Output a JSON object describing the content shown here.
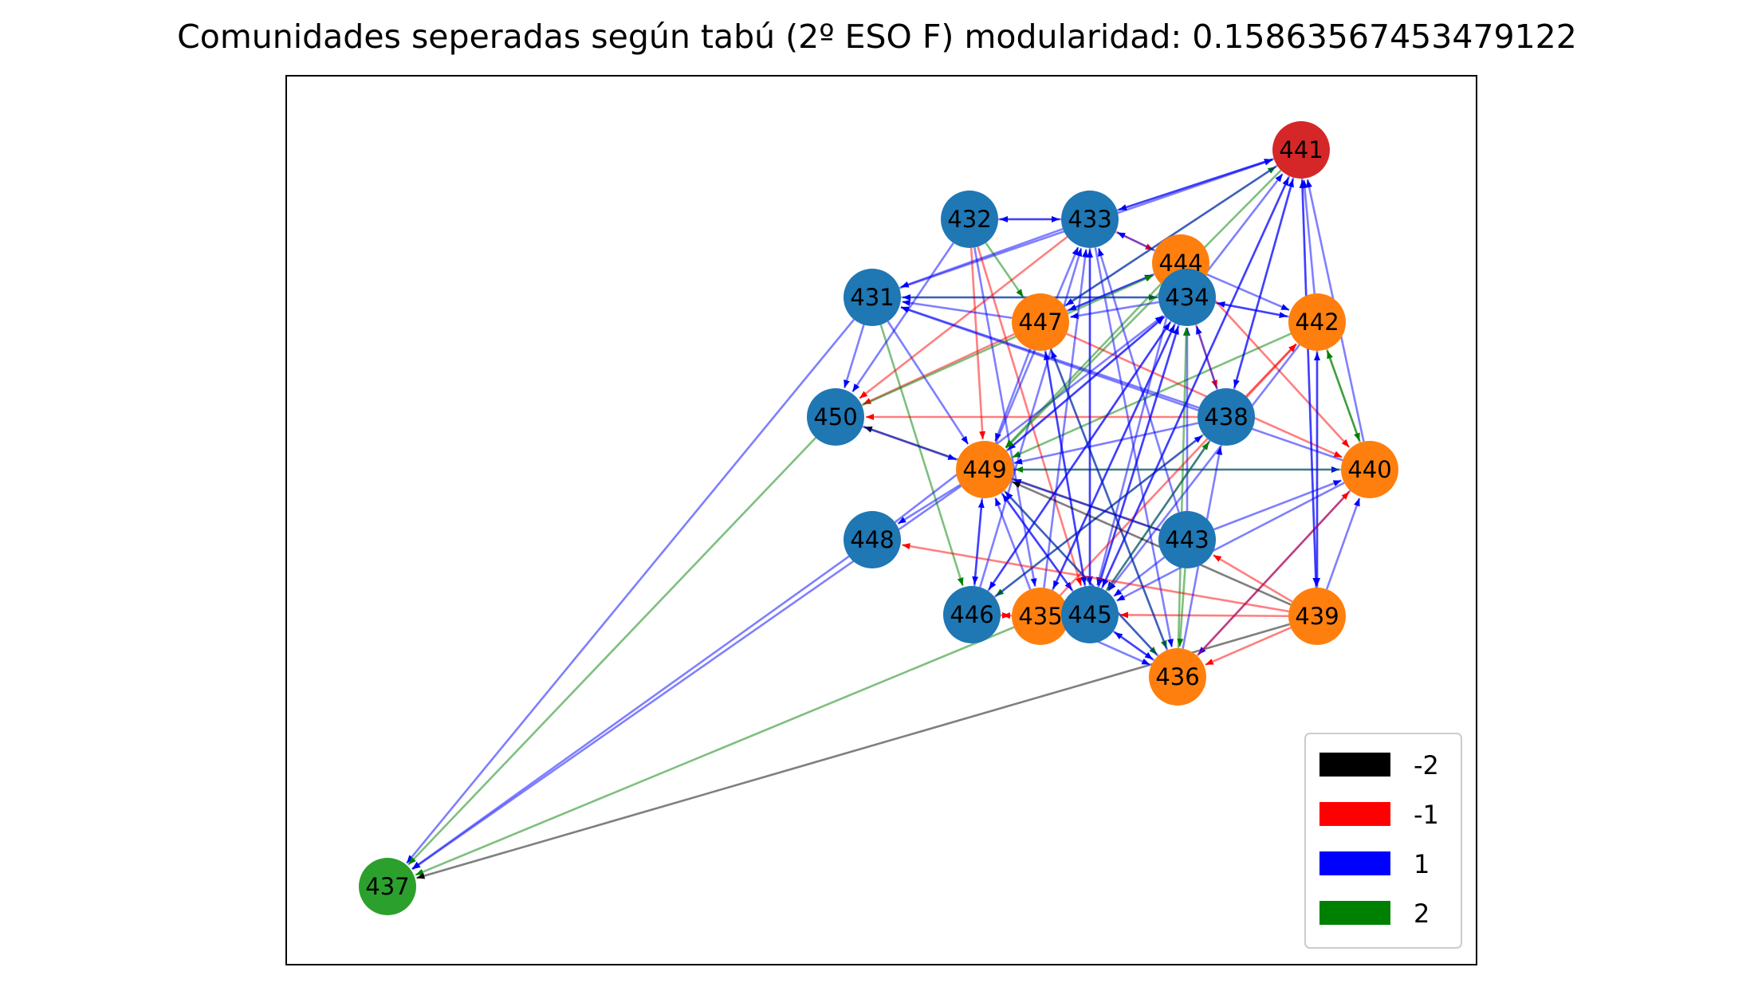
{
  "title": "Comunidades seperadas según tabú (2º ESO F) modularidad: 0.15863567453479122",
  "community_colors": {
    "blue": "#1f77b4",
    "orange": "#ff7f0e",
    "green": "#2ca02c",
    "red": "#d62728"
  },
  "edge_colors": {
    "-2": "#000000",
    "-1": "#ff0000",
    "1": "#0000ff",
    "2": "#008000"
  },
  "legend": [
    {
      "label": "-2",
      "color": "#000000"
    },
    {
      "label": "-1",
      "color": "#ff0000"
    },
    {
      "label": "1",
      "color": "#0000ff"
    },
    {
      "label": "2",
      "color": "#008000"
    }
  ],
  "nodes": [
    {
      "id": "441",
      "community": "red"
    },
    {
      "id": "432",
      "community": "blue"
    },
    {
      "id": "433",
      "community": "blue"
    },
    {
      "id": "444",
      "community": "orange"
    },
    {
      "id": "431",
      "community": "blue"
    },
    {
      "id": "434",
      "community": "blue"
    },
    {
      "id": "447",
      "community": "orange"
    },
    {
      "id": "442",
      "community": "orange"
    },
    {
      "id": "450",
      "community": "blue"
    },
    {
      "id": "438",
      "community": "blue"
    },
    {
      "id": "449",
      "community": "orange"
    },
    {
      "id": "440",
      "community": "orange"
    },
    {
      "id": "448",
      "community": "blue"
    },
    {
      "id": "443",
      "community": "blue"
    },
    {
      "id": "446",
      "community": "blue"
    },
    {
      "id": "435",
      "community": "orange"
    },
    {
      "id": "445",
      "community": "blue"
    },
    {
      "id": "439",
      "community": "orange"
    },
    {
      "id": "436",
      "community": "orange"
    },
    {
      "id": "437",
      "community": "green"
    }
  ],
  "edges": [
    {
      "s": "431",
      "t": "437",
      "w": "1"
    },
    {
      "s": "450",
      "t": "437",
      "w": "2"
    },
    {
      "s": "449",
      "t": "437",
      "w": "1"
    },
    {
      "s": "448",
      "t": "437",
      "w": "1"
    },
    {
      "s": "435",
      "t": "437",
      "w": "2"
    },
    {
      "s": "439",
      "t": "437",
      "w": "-2"
    },
    {
      "s": "431",
      "t": "450",
      "w": "1"
    },
    {
      "s": "431",
      "t": "449",
      "w": "1"
    },
    {
      "s": "431",
      "t": "446",
      "w": "2"
    },
    {
      "s": "431",
      "t": "434",
      "w": "2"
    },
    {
      "s": "431",
      "t": "441",
      "w": "1"
    },
    {
      "s": "432",
      "t": "433",
      "w": "1"
    },
    {
      "s": "433",
      "t": "432",
      "w": "1"
    },
    {
      "s": "432",
      "t": "449",
      "w": "-1"
    },
    {
      "s": "432",
      "t": "445",
      "w": "-1"
    },
    {
      "s": "432",
      "t": "435",
      "w": "1"
    },
    {
      "s": "432",
      "t": "447",
      "w": "2"
    },
    {
      "s": "432",
      "t": "450",
      "w": "1"
    },
    {
      "s": "433",
      "t": "441",
      "w": "1"
    },
    {
      "s": "433",
      "t": "444",
      "w": "-1"
    },
    {
      "s": "433",
      "t": "431",
      "w": "1"
    },
    {
      "s": "433",
      "t": "450",
      "w": "-1"
    },
    {
      "s": "433",
      "t": "445",
      "w": "1"
    },
    {
      "s": "433",
      "t": "436",
      "w": "1"
    },
    {
      "s": "434",
      "t": "441",
      "w": "1"
    },
    {
      "s": "434",
      "t": "442",
      "w": "1"
    },
    {
      "s": "434",
      "t": "431",
      "w": "1"
    },
    {
      "s": "434",
      "t": "449",
      "w": "1"
    },
    {
      "s": "434",
      "t": "446",
      "w": "1"
    },
    {
      "s": "434",
      "t": "445",
      "w": "1"
    },
    {
      "s": "434",
      "t": "435",
      "w": "1"
    },
    {
      "s": "434",
      "t": "438",
      "w": "-1"
    },
    {
      "s": "434",
      "t": "447",
      "w": "1"
    },
    {
      "s": "444",
      "t": "447",
      "w": "1"
    },
    {
      "s": "444",
      "t": "440",
      "w": "-1"
    },
    {
      "s": "444",
      "t": "442",
      "w": "1"
    },
    {
      "s": "444",
      "t": "449",
      "w": "2"
    },
    {
      "s": "444",
      "t": "445",
      "w": "1"
    },
    {
      "s": "444",
      "t": "433",
      "w": "1"
    },
    {
      "s": "447",
      "t": "444",
      "w": "1"
    },
    {
      "s": "447",
      "t": "441",
      "w": "2"
    },
    {
      "s": "447",
      "t": "431",
      "w": "1"
    },
    {
      "s": "447",
      "t": "449",
      "w": "1"
    },
    {
      "s": "447",
      "t": "445",
      "w": "1"
    },
    {
      "s": "447",
      "t": "436",
      "w": "2"
    },
    {
      "s": "447",
      "t": "440",
      "w": "-1"
    },
    {
      "s": "447",
      "t": "450",
      "w": "-1"
    },
    {
      "s": "442",
      "t": "441",
      "w": "1"
    },
    {
      "s": "442",
      "t": "440",
      "w": "2"
    },
    {
      "s": "442",
      "t": "439",
      "w": "1"
    },
    {
      "s": "442",
      "t": "449",
      "w": "2"
    },
    {
      "s": "442",
      "t": "445",
      "w": "1"
    },
    {
      "s": "442",
      "t": "434",
      "w": "1"
    },
    {
      "s": "438",
      "t": "450",
      "w": "-1"
    },
    {
      "s": "438",
      "t": "441",
      "w": "1"
    },
    {
      "s": "438",
      "t": "442",
      "w": "-1"
    },
    {
      "s": "438",
      "t": "431",
      "w": "1"
    },
    {
      "s": "438",
      "t": "449",
      "w": "1"
    },
    {
      "s": "438",
      "t": "445",
      "w": "1"
    },
    {
      "s": "438",
      "t": "446",
      "w": "2"
    },
    {
      "s": "438",
      "t": "434",
      "w": "1"
    },
    {
      "s": "449",
      "t": "434",
      "w": "1"
    },
    {
      "s": "449",
      "t": "433",
      "w": "1"
    },
    {
      "s": "449",
      "t": "446",
      "w": "1"
    },
    {
      "s": "449",
      "t": "445",
      "w": "1"
    },
    {
      "s": "449",
      "t": "436",
      "w": "2"
    },
    {
      "s": "449",
      "t": "448",
      "w": "1"
    },
    {
      "s": "449",
      "t": "440",
      "w": "1"
    },
    {
      "s": "440",
      "t": "449",
      "w": "2"
    },
    {
      "s": "440",
      "t": "441",
      "w": "1"
    },
    {
      "s": "440",
      "t": "436",
      "w": "1"
    },
    {
      "s": "440",
      "t": "442",
      "w": "2"
    },
    {
      "s": "440",
      "t": "445",
      "w": "1"
    },
    {
      "s": "440",
      "t": "431",
      "w": "1"
    },
    {
      "s": "443",
      "t": "450",
      "w": "-2"
    },
    {
      "s": "443",
      "t": "445",
      "w": "1"
    },
    {
      "s": "443",
      "t": "436",
      "w": "2"
    },
    {
      "s": "443",
      "t": "440",
      "w": "1"
    },
    {
      "s": "443",
      "t": "449",
      "w": "1"
    },
    {
      "s": "443",
      "t": "434",
      "w": "1"
    },
    {
      "s": "443",
      "t": "433",
      "w": "1"
    },
    {
      "s": "446",
      "t": "449",
      "w": "1"
    },
    {
      "s": "446",
      "t": "434",
      "w": "1"
    },
    {
      "s": "446",
      "t": "438",
      "w": "1"
    },
    {
      "s": "446",
      "t": "433",
      "w": "1"
    },
    {
      "s": "446",
      "t": "435",
      "w": "-1"
    },
    {
      "s": "435",
      "t": "449",
      "w": "1"
    },
    {
      "s": "435",
      "t": "442",
      "w": "-1"
    },
    {
      "s": "435",
      "t": "434",
      "w": "1"
    },
    {
      "s": "435",
      "t": "433",
      "w": "1"
    },
    {
      "s": "435",
      "t": "436",
      "w": "1"
    },
    {
      "s": "435",
      "t": "446",
      "w": "-1"
    },
    {
      "s": "445",
      "t": "434",
      "w": "1"
    },
    {
      "s": "445",
      "t": "441",
      "w": "1"
    },
    {
      "s": "445",
      "t": "436",
      "w": "1"
    },
    {
      "s": "445",
      "t": "433",
      "w": "1"
    },
    {
      "s": "445",
      "t": "449",
      "w": "1"
    },
    {
      "s": "445",
      "t": "438",
      "w": "2"
    },
    {
      "s": "445",
      "t": "447",
      "w": "1"
    },
    {
      "s": "439",
      "t": "436",
      "w": "-1"
    },
    {
      "s": "439",
      "t": "443",
      "w": "-1"
    },
    {
      "s": "439",
      "t": "448",
      "w": "-1"
    },
    {
      "s": "439",
      "t": "445",
      "w": "-1"
    },
    {
      "s": "439",
      "t": "449",
      "w": "-2"
    },
    {
      "s": "439",
      "t": "440",
      "w": "1"
    },
    {
      "s": "439",
      "t": "441",
      "w": "1"
    },
    {
      "s": "439",
      "t": "442",
      "w": "1"
    },
    {
      "s": "436",
      "t": "440",
      "w": "-1"
    },
    {
      "s": "436",
      "t": "449",
      "w": "1"
    },
    {
      "s": "436",
      "t": "434",
      "w": "2"
    },
    {
      "s": "436",
      "t": "447",
      "w": "1"
    },
    {
      "s": "436",
      "t": "445",
      "w": "1"
    },
    {
      "s": "436",
      "t": "438",
      "w": "1"
    },
    {
      "s": "448",
      "t": "434",
      "w": "1"
    },
    {
      "s": "450",
      "t": "449",
      "w": "1"
    },
    {
      "s": "450",
      "t": "444",
      "w": "2"
    },
    {
      "s": "441",
      "t": "433",
      "w": "1"
    },
    {
      "s": "441",
      "t": "449",
      "w": "2"
    },
    {
      "s": "441",
      "t": "445",
      "w": "1"
    },
    {
      "s": "441",
      "t": "439",
      "w": "1"
    },
    {
      "s": "441",
      "t": "438",
      "w": "1"
    },
    {
      "s": "441",
      "t": "447",
      "w": "1"
    }
  ]
}
